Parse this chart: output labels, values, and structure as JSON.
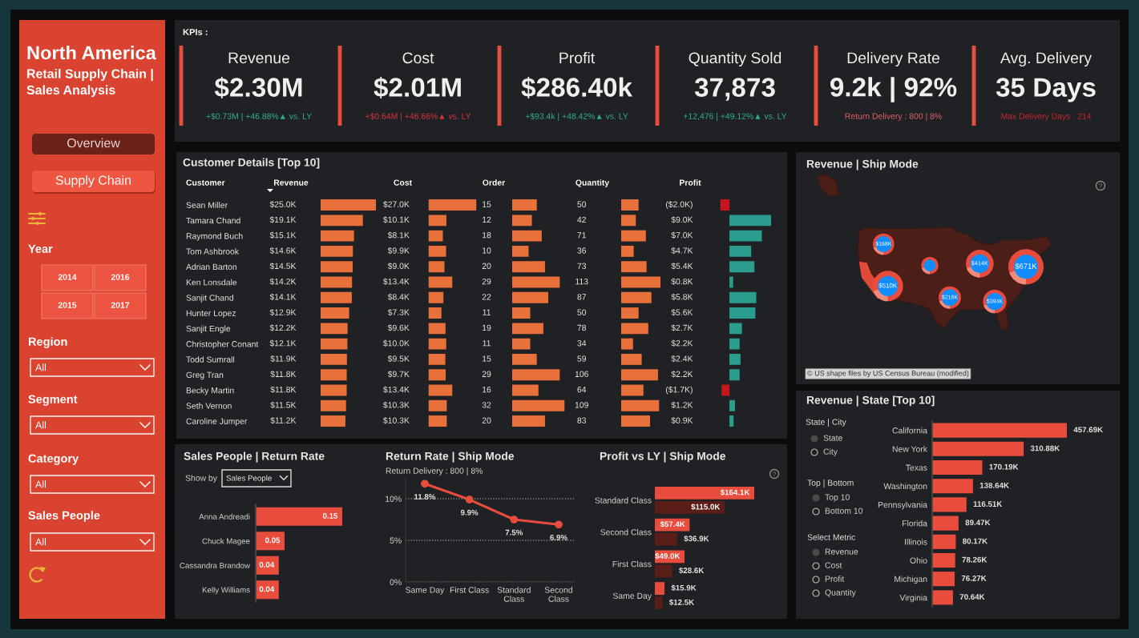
{
  "chart_data": [
    {
      "type": "other",
      "title": "North America",
      "subtitle": "Retail Supply Chain | Sales Analysis",
      "annotations": [
        "Overview",
        "Supply Chain",
        "Year",
        "2014",
        "2016",
        "2015",
        "2017",
        "Region",
        "All",
        "Segment",
        "All",
        "Category",
        "All",
        "Sales People",
        "All"
      ]
    },
    {
      "type": "other",
      "title": "KPIs :",
      "annotations": [
        "Revenue",
        "$2.30M",
        "+$0.73M | +46.88%▲ vs. LY",
        "Cost",
        "$2.01M",
        "+$0.64M | +46.66%▲ vs. LY",
        "Profit",
        "$286.40k",
        "+$93.4k | +48.42%▲ vs. LY",
        "Quantity Sold",
        "37,873",
        "+12,476 | +49.12%▲ vs. LY",
        "Delivery Rate",
        "9.2k | 92%",
        "Return Delivery : 800 | 8%",
        "Avg. Delivery",
        "35 Days",
        "Max Delivery Days : 214"
      ]
    },
    {
      "type": "bar",
      "orientation": "horizontal",
      "title": "Customer Details [Top 10]",
      "ylabel": "Customer",
      "xlabel": "Revenue",
      "tick_labels": "y",
      "categories": [
        "Sean Miller",
        "Tamara Chand",
        "Raymond Buch",
        "Tom Ashbrook",
        "Adrian Barton",
        "Ken Lonsdale",
        "Sanjit Chand",
        "Hunter Lopez",
        "Sanjit Engle",
        "Christopher Conant",
        "Todd Sumrall",
        "Greg Tran",
        "Becky Martin",
        "Seth Vernon",
        "Caroline Jumper"
      ],
      "values": [
        25.0,
        19.1,
        15.1,
        14.6,
        14.5,
        14.2,
        14.1,
        12.9,
        12.2,
        12.1,
        11.9,
        11.8,
        11.8,
        11.5,
        11.2
      ],
      "value_labels": [
        "$25.0K",
        "$19.1K",
        "$15.1K",
        "$14.6K",
        "$14.5K",
        "$14.2K",
        "$14.1K",
        "$12.9K",
        "$12.2K",
        "$12.1K",
        "$11.9K",
        "$11.8K",
        "$11.8K",
        "$11.5K",
        "$11.2K"
      ],
      "color": "#e8703a"
    },
    {
      "type": "bar",
      "orientation": "horizontal",
      "xlabel": "Cost",
      "categories": [
        null,
        null,
        null,
        null,
        null,
        null,
        null,
        null,
        null,
        null,
        null,
        null,
        null,
        null,
        null
      ],
      "values": [
        27.0,
        10.1,
        8.1,
        9.9,
        9.0,
        13.4,
        8.4,
        7.3,
        9.6,
        10.0,
        9.5,
        9.7,
        13.4,
        10.3,
        10.3
      ],
      "value_labels": [
        "$27.0K",
        "$10.1K",
        "$8.1K",
        "$9.9K",
        "$9.0K",
        "$13.4K",
        "$8.4K",
        "$7.3K",
        "$9.6K",
        "$10.0K",
        "$9.5K",
        "$9.7K",
        "$13.4K",
        "$10.3K",
        "$10.3K"
      ],
      "color": "#e8703a"
    },
    {
      "type": "bar",
      "orientation": "horizontal",
      "xlabel": "Order",
      "categories": [
        null,
        null,
        null,
        null,
        null,
        null,
        null,
        null,
        null,
        null,
        null,
        null,
        null,
        null,
        null
      ],
      "values": [
        15,
        12,
        18,
        10,
        20,
        29,
        22,
        11,
        19,
        11,
        15,
        29,
        16,
        32,
        20
      ],
      "data_labels": true,
      "color": "#e8703a"
    },
    {
      "type": "bar",
      "orientation": "horizontal",
      "xlabel": "Quantity",
      "categories": [
        null,
        null,
        null,
        null,
        null,
        null,
        null,
        null,
        null,
        null,
        null,
        null,
        null,
        null,
        null
      ],
      "values": [
        50,
        42,
        71,
        36,
        73,
        113,
        87,
        50,
        78,
        34,
        59,
        106,
        64,
        109,
        83
      ],
      "data_labels": true,
      "color": "#e8703a"
    },
    {
      "type": "bar",
      "orientation": "horizontal",
      "xlabel": "Profit",
      "categories": [
        null,
        null,
        null,
        null,
        null,
        null,
        null,
        null,
        null,
        null,
        null,
        null,
        null,
        null,
        null
      ],
      "values": [
        -2.0,
        9.0,
        7.0,
        4.7,
        5.4,
        0.8,
        5.8,
        5.6,
        2.7,
        2.2,
        2.4,
        2.2,
        -1.7,
        1.2,
        0.9
      ],
      "value_labels": [
        "($2.0K)",
        "$9.0K",
        "$7.0K",
        "$4.7K",
        "$5.4K",
        "$0.8K",
        "$5.8K",
        "$5.6K",
        "$2.7K",
        "$2.2K",
        "$2.4K",
        "$2.2K",
        "($1.7K)",
        "$1.2K",
        "$0.9K"
      ],
      "colors": [
        "#c4161c",
        "#2a9d8f",
        "#2a9d8f",
        "#2a9d8f",
        "#2a9d8f",
        "#2a9d8f",
        "#2a9d8f",
        "#2a9d8f",
        "#2a9d8f",
        "#2a9d8f",
        "#2a9d8f",
        "#2a9d8f",
        "#c4161c",
        "#2a9d8f",
        "#2a9d8f"
      ]
    },
    {
      "type": "other",
      "title": "Revenue | Ship Mode",
      "annotations": [
        "$168K",
        "$510K",
        "$414K",
        "$671K",
        "$216K",
        "$394K",
        "© US shape files by US Census Bureau (modified)"
      ]
    },
    {
      "type": "bar",
      "orientation": "horizontal",
      "title": "Sales People | Return Rate",
      "annotations": [
        "Show by",
        "Sales People"
      ],
      "tick_labels": "y",
      "categories": [
        "Anna Andreadi",
        "Chuck Magee",
        "Cassandra Brandow",
        "Kelly Williams"
      ],
      "values": [
        0.15,
        0.05,
        0.04,
        0.04
      ],
      "data_labels": true,
      "color": "#e84c3d"
    },
    {
      "type": "line",
      "title": "Return Rate | Ship Mode",
      "subtitle": "Return Delivery : 800 | 8%",
      "categories": [
        "Same Day",
        "First Class",
        "Standard Class",
        "Second Class"
      ],
      "values": [
        11.8,
        9.9,
        7.5,
        6.9
      ],
      "value_labels": [
        "11.8%",
        "9.9%",
        "7.5%",
        "6.9%"
      ],
      "color": "#e84c3d",
      "marker": "circle",
      "line_style": "solid",
      "ylim": [
        0,
        12.5
      ],
      "yticks": [
        {
          "value": 0,
          "label": "0%"
        },
        {
          "value": 5,
          "label": "5%"
        },
        {
          "value": 10,
          "label": "10%"
        }
      ],
      "grid": "y"
    },
    {
      "type": "bar",
      "orientation": "horizontal",
      "title": "Profit vs LY | Ship Mode",
      "tick_labels": "y",
      "categories": [
        "Standard Class",
        "Second Class",
        "First Class",
        "Same Day"
      ],
      "series": [
        {
          "color": "#e84c3d",
          "values": [
            164.1,
            57.4,
            49.0,
            15.9
          ],
          "value_labels": [
            "$164.1K",
            "$57.4K",
            "$49.0K",
            "$15.9K"
          ]
        },
        {
          "color": "#5a1d17",
          "values": [
            115.0,
            36.9,
            28.6,
            12.5
          ],
          "value_labels": [
            "$115.0K",
            "$36.9K",
            "$28.6K",
            "$12.5K"
          ]
        }
      ]
    },
    {
      "type": "other",
      "annotations": [
        "State | City",
        "State",
        "City",
        "Top | Bottom",
        "Top 10",
        "Bottom 10",
        "Select Metric",
        "Revenue",
        "Cost",
        "Profit",
        "Quantity"
      ]
    },
    {
      "type": "bar",
      "orientation": "horizontal",
      "title": "Revenue | State [Top 10]",
      "tick_labels": "y",
      "categories": [
        "California",
        "New York",
        "Texas",
        "Washington",
        "Pennsylvania",
        "Florida",
        "Illinois",
        "Ohio",
        "Michigan",
        "Virginia"
      ],
      "values": [
        457.69,
        310.88,
        170.19,
        138.64,
        116.51,
        89.47,
        80.17,
        78.26,
        76.27,
        70.64
      ],
      "value_labels": [
        "457.69K",
        "310.88K",
        "170.19K",
        "138.64K",
        "116.51K",
        "89.47K",
        "80.17K",
        "78.26K",
        "76.27K",
        "70.64K"
      ],
      "color": "#e84c3d"
    }
  ]
}
